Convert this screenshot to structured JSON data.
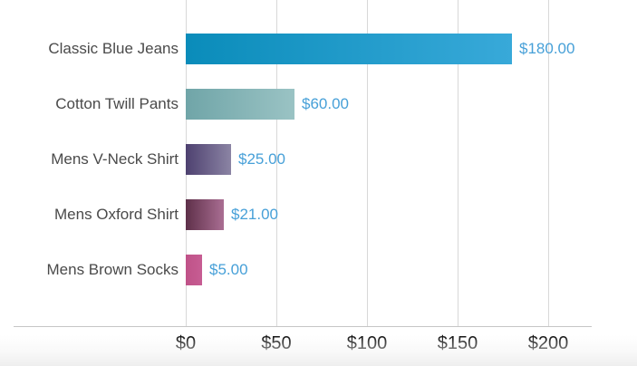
{
  "chart_data": {
    "type": "bar",
    "orientation": "horizontal",
    "title": "",
    "xlabel": "",
    "ylabel": "",
    "categories": [
      "Classic Blue Jeans",
      "Cotton Twill Pants",
      "Mens V-Neck Shirt",
      "Mens Oxford Shirt",
      "Mens Brown Socks"
    ],
    "values": [
      180,
      60,
      25,
      21,
      5
    ],
    "value_labels": [
      "$180.00",
      "$60.00",
      "$25.00",
      "$21.00",
      "$5.00"
    ],
    "tick_values": [
      0,
      50,
      100,
      150,
      200
    ],
    "tick_labels": [
      "$0",
      "$50",
      "$100",
      "$150",
      "$200"
    ],
    "xlim": [
      0,
      200
    ],
    "grid": "vertical-only",
    "legend": "none",
    "bar_gradients": [
      {
        "from": "#0a8cba",
        "to": "#38a9d9"
      },
      {
        "from": "#70a5a8",
        "to": "#9ac3c4"
      },
      {
        "from": "#4e4170",
        "to": "#8b84a4"
      },
      {
        "from": "#5e3049",
        "to": "#aa6e93"
      },
      {
        "from": "#bf5288",
        "to": "#c75d93"
      }
    ],
    "colors": {
      "value_label": "#47a0d8",
      "category_label": "#4a4a4a",
      "tick_label": "#0d0d0d",
      "gridline": "#d8d8d8",
      "axis_line": "#c6c6c6",
      "background": "#ffffff",
      "page_edge": "#eeeeee"
    }
  }
}
